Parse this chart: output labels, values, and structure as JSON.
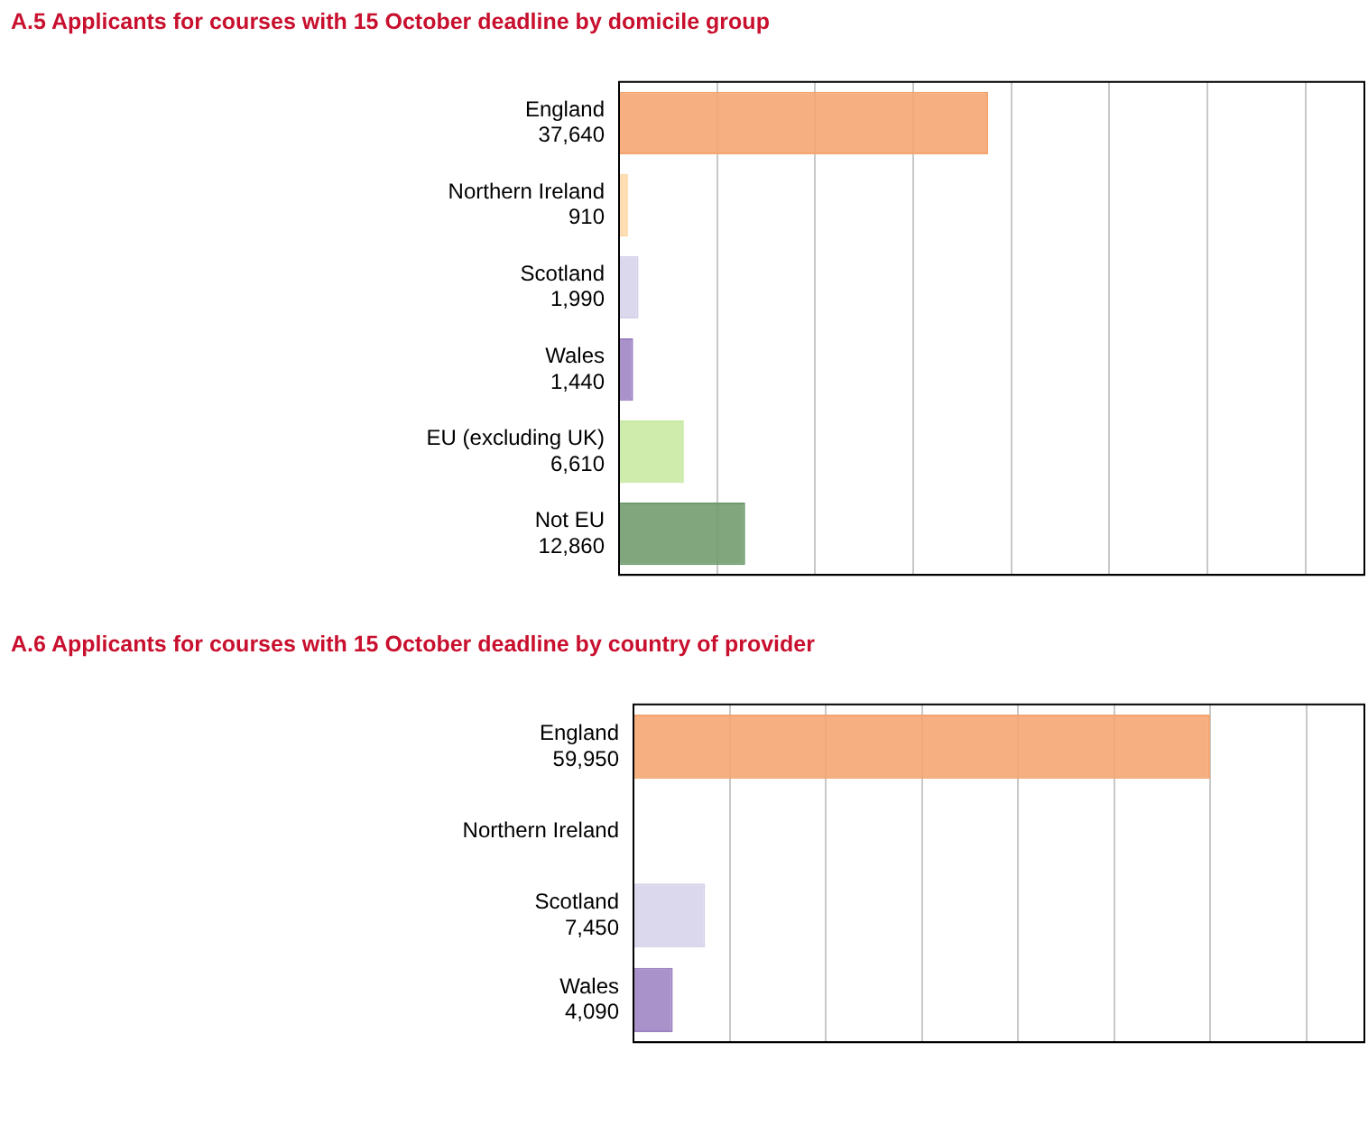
{
  "chart_data": [
    {
      "type": "bar",
      "orientation": "horizontal",
      "title": "A.5 Applicants for courses with 15 October deadline by domicile group",
      "categories": [
        "England",
        "Northern Ireland",
        "Scotland",
        "Wales",
        "EU (excluding UK)",
        "Not EU"
      ],
      "values": [
        37640,
        910,
        1990,
        1440,
        6610,
        12860
      ],
      "value_labels": [
        "37,640",
        "910",
        "1,990",
        "1,440",
        "6,610",
        "12,860"
      ],
      "colors": [
        "#f4a46e",
        "#fdd9a8",
        "#d6d2ea",
        "#9d82c2",
        "#c8e9a2",
        "#6f9a6c"
      ],
      "xlim": [
        0,
        76000
      ],
      "xticks": [
        {
          "value": 0,
          "label": null
        },
        {
          "value": 10000,
          "label": null
        },
        {
          "value": 20000,
          "label": null
        },
        {
          "value": 30000,
          "label": null
        },
        {
          "value": 40000,
          "label": null
        },
        {
          "value": 50000,
          "label": null
        },
        {
          "value": 60000,
          "label": null
        },
        {
          "value": 70000,
          "label": null
        }
      ],
      "grid": "x",
      "tick_labels": "y"
    },
    {
      "type": "bar",
      "orientation": "horizontal",
      "title": "A.6 Applicants for courses with 15 October deadline by country of provider",
      "categories": [
        "England",
        "Northern Ireland",
        "Scotland",
        "Wales"
      ],
      "values": [
        59950,
        null,
        7450,
        4090
      ],
      "value_labels": [
        "59,950",
        null,
        "7,450",
        "4,090"
      ],
      "colors": [
        "#f4a46e",
        "#fdd9a8",
        "#d6d2ea",
        "#9d82c2"
      ],
      "xlim": [
        0,
        76000
      ],
      "xticks": [
        {
          "value": 0,
          "label": null
        },
        {
          "value": 10000,
          "label": null
        },
        {
          "value": 20000,
          "label": null
        },
        {
          "value": 30000,
          "label": null
        },
        {
          "value": 40000,
          "label": null
        },
        {
          "value": 50000,
          "label": null
        },
        {
          "value": 60000,
          "label": null
        },
        {
          "value": 70000,
          "label": null
        }
      ],
      "grid": "x",
      "tick_labels": "y"
    }
  ]
}
